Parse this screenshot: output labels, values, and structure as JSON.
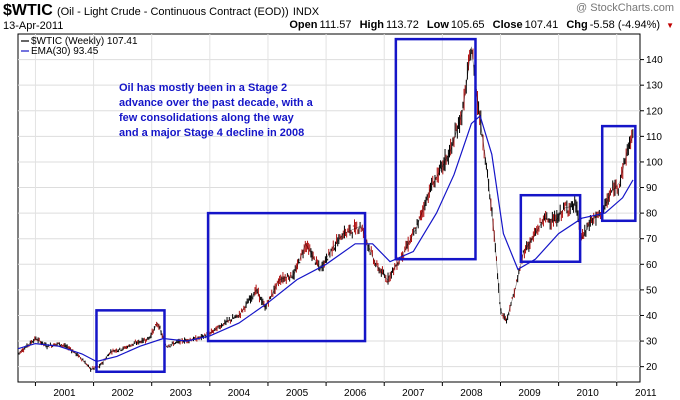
{
  "header": {
    "symbol": "$WTIC",
    "description": "(Oil - Light Crude - Continuous Contract (EOD))",
    "exchange": "INDX",
    "date": "13-Apr-2011",
    "watermark": "@ StockCharts.com"
  },
  "quote": {
    "open_label": "Open",
    "open": "111.57",
    "high_label": "High",
    "high": "113.72",
    "low_label": "Low",
    "low": "105.65",
    "close_label": "Close",
    "close": "107.41",
    "chg_label": "Chg",
    "chg": "-5.58 (-4.94%)",
    "down_icon": "down-triangle-icon",
    "down_color": "#c00000"
  },
  "chart_data": {
    "type": "candlestick-line",
    "legend": [
      {
        "label": "$WTIC (Weekly) 107.41",
        "color": "#000000"
      },
      {
        "label": "EMA(30) 93.45",
        "color": "#1515c8"
      }
    ],
    "ylim": [
      14,
      150
    ],
    "y_ticks": [
      20,
      30,
      40,
      50,
      60,
      70,
      80,
      90,
      100,
      110,
      120,
      130,
      140
    ],
    "x_ticks": [
      "2001",
      "2002",
      "2003",
      "2004",
      "2005",
      "2006",
      "2007",
      "2008",
      "2009",
      "2010",
      "2011"
    ],
    "xlim": [
      2000.7,
      2011.4
    ],
    "grid": true,
    "series": [
      {
        "name": "$WTIC",
        "color": "#000000",
        "points": [
          [
            2000.7,
            25
          ],
          [
            2000.85,
            28
          ],
          [
            2001.0,
            31
          ],
          [
            2001.2,
            28
          ],
          [
            2001.4,
            29
          ],
          [
            2001.6,
            27
          ],
          [
            2001.8,
            23
          ],
          [
            2001.95,
            19
          ],
          [
            2002.1,
            20
          ],
          [
            2002.3,
            26
          ],
          [
            2002.5,
            27
          ],
          [
            2002.7,
            29
          ],
          [
            2002.95,
            31
          ],
          [
            2003.1,
            37
          ],
          [
            2003.25,
            28
          ],
          [
            2003.5,
            30
          ],
          [
            2003.8,
            31
          ],
          [
            2004.0,
            33
          ],
          [
            2004.25,
            37
          ],
          [
            2004.5,
            40
          ],
          [
            2004.8,
            50
          ],
          [
            2004.95,
            43
          ],
          [
            2005.2,
            54
          ],
          [
            2005.45,
            56
          ],
          [
            2005.65,
            68
          ],
          [
            2005.9,
            58
          ],
          [
            2006.1,
            66
          ],
          [
            2006.3,
            72
          ],
          [
            2006.6,
            75
          ],
          [
            2006.85,
            60
          ],
          [
            2007.05,
            54
          ],
          [
            2007.3,
            63
          ],
          [
            2007.55,
            74
          ],
          [
            2007.8,
            90
          ],
          [
            2007.95,
            96
          ],
          [
            2008.15,
            105
          ],
          [
            2008.35,
            120
          ],
          [
            2008.5,
            145
          ],
          [
            2008.6,
            125
          ],
          [
            2008.75,
            100
          ],
          [
            2008.9,
            70
          ],
          [
            2009.0,
            42
          ],
          [
            2009.1,
            38
          ],
          [
            2009.25,
            50
          ],
          [
            2009.4,
            65
          ],
          [
            2009.55,
            70
          ],
          [
            2009.75,
            78
          ],
          [
            2009.95,
            77
          ],
          [
            2010.1,
            82
          ],
          [
            2010.3,
            83
          ],
          [
            2010.4,
            70
          ],
          [
            2010.55,
            77
          ],
          [
            2010.75,
            80
          ],
          [
            2010.9,
            88
          ],
          [
            2011.05,
            92
          ],
          [
            2011.2,
            106
          ],
          [
            2011.28,
            110
          ]
        ]
      },
      {
        "name": "EMA(30)",
        "color": "#1515c8",
        "points": [
          [
            2000.7,
            27
          ],
          [
            2001.0,
            29
          ],
          [
            2001.4,
            28
          ],
          [
            2001.8,
            25
          ],
          [
            2002.05,
            22
          ],
          [
            2002.4,
            24
          ],
          [
            2002.8,
            28
          ],
          [
            2003.2,
            31
          ],
          [
            2003.6,
            30
          ],
          [
            2004.0,
            32
          ],
          [
            2004.5,
            37
          ],
          [
            2005.0,
            45
          ],
          [
            2005.5,
            54
          ],
          [
            2006.0,
            60
          ],
          [
            2006.5,
            68
          ],
          [
            2006.8,
            68
          ],
          [
            2007.1,
            61
          ],
          [
            2007.5,
            65
          ],
          [
            2007.9,
            80
          ],
          [
            2008.2,
            95
          ],
          [
            2008.5,
            115
          ],
          [
            2008.65,
            118
          ],
          [
            2008.85,
            103
          ],
          [
            2009.05,
            72
          ],
          [
            2009.3,
            58
          ],
          [
            2009.6,
            62
          ],
          [
            2010.0,
            72
          ],
          [
            2010.4,
            78
          ],
          [
            2010.8,
            80
          ],
          [
            2011.1,
            86
          ],
          [
            2011.28,
            93
          ]
        ]
      }
    ],
    "boxes": [
      {
        "x0": 2002.05,
        "x1": 2003.22,
        "y0": 18,
        "y1": 42
      },
      {
        "x0": 2003.97,
        "x1": 2006.67,
        "y0": 30,
        "y1": 80
      },
      {
        "x0": 2007.2,
        "x1": 2008.57,
        "y0": 62,
        "y1": 148
      },
      {
        "x0": 2009.35,
        "x1": 2010.37,
        "y0": 61,
        "y1": 87
      },
      {
        "x0": 2010.75,
        "x1": 2011.32,
        "y0": 77,
        "y1": 114
      }
    ],
    "box_color": "#1515c8",
    "annotation": {
      "lines": [
        "Oil has mostly been in a Stage 2",
        "advance over the past decade, with a",
        "few consolidations along the way",
        "and a major Stage 4 decline in 2008"
      ],
      "color": "#1515c8"
    }
  }
}
